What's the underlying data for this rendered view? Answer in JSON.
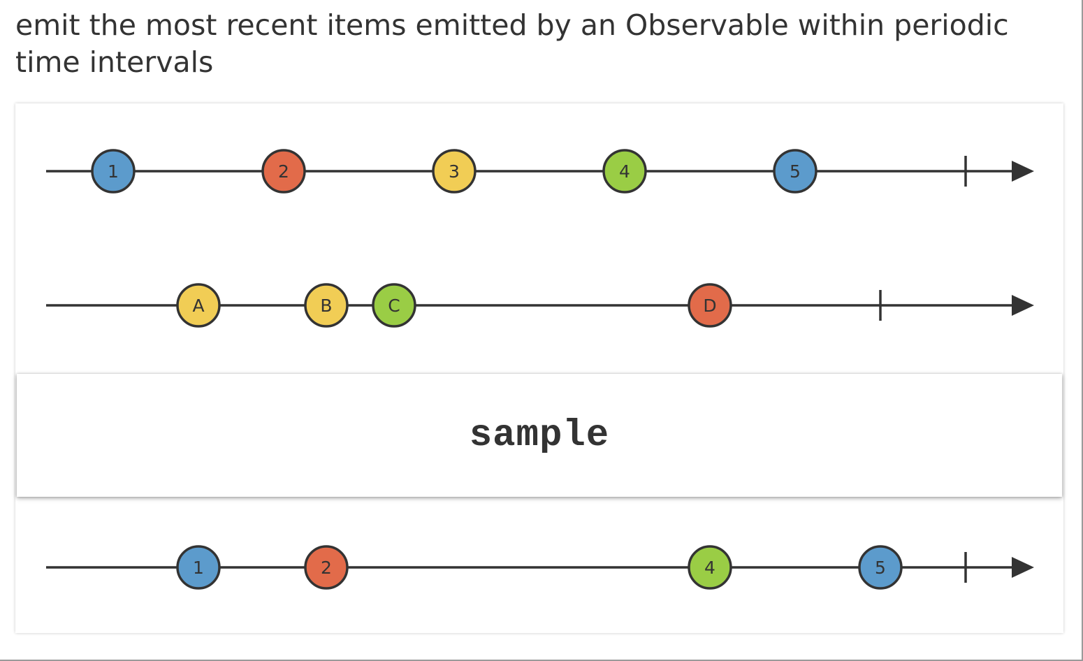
{
  "description": "emit the most recent items emitted by an Observable within periodic time intervals",
  "operator": "sample",
  "colors": {
    "line": "#333333",
    "blue": "#5c9bcc",
    "red": "#e26b4a",
    "yellow": "#f1cd55",
    "green": "#9acd45"
  },
  "timelines": [
    {
      "role": "source",
      "marbles": [
        {
          "label": "1",
          "color": "blue"
        },
        {
          "label": "2",
          "color": "red"
        },
        {
          "label": "3",
          "color": "yellow"
        },
        {
          "label": "4",
          "color": "green"
        },
        {
          "label": "5",
          "color": "blue"
        }
      ]
    },
    {
      "role": "sampler",
      "marbles": [
        {
          "label": "A",
          "color": "yellow"
        },
        {
          "label": "B",
          "color": "yellow"
        },
        {
          "label": "C",
          "color": "green"
        },
        {
          "label": "D",
          "color": "red"
        }
      ]
    },
    {
      "role": "output",
      "marbles": [
        {
          "label": "1",
          "color": "blue"
        },
        {
          "label": "2",
          "color": "red"
        },
        {
          "label": "4",
          "color": "green"
        },
        {
          "label": "5",
          "color": "blue"
        }
      ]
    }
  ]
}
